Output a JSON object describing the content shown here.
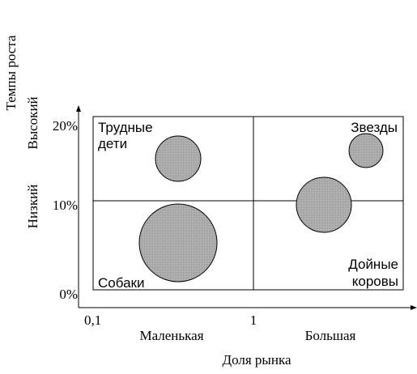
{
  "y_title": "Темпы роста",
  "y_levels": {
    "high": "Высокий",
    "low": "Низкий"
  },
  "y_ticks": [
    "20%",
    "10%",
    "0%"
  ],
  "x_title": "Доля рынка",
  "x_ticks": [
    "0,1",
    "1"
  ],
  "x_levels": {
    "small": "Маленькая",
    "large": "Большая"
  },
  "quadrants": {
    "question_marks": [
      "Трудные",
      "дети"
    ],
    "stars": "Звезды",
    "dogs": "Собаки",
    "cash_cows": [
      "Дойные",
      "коровы"
    ]
  },
  "colors": {
    "bubble_fill": "#a6a6a6",
    "line": "#000000"
  }
}
